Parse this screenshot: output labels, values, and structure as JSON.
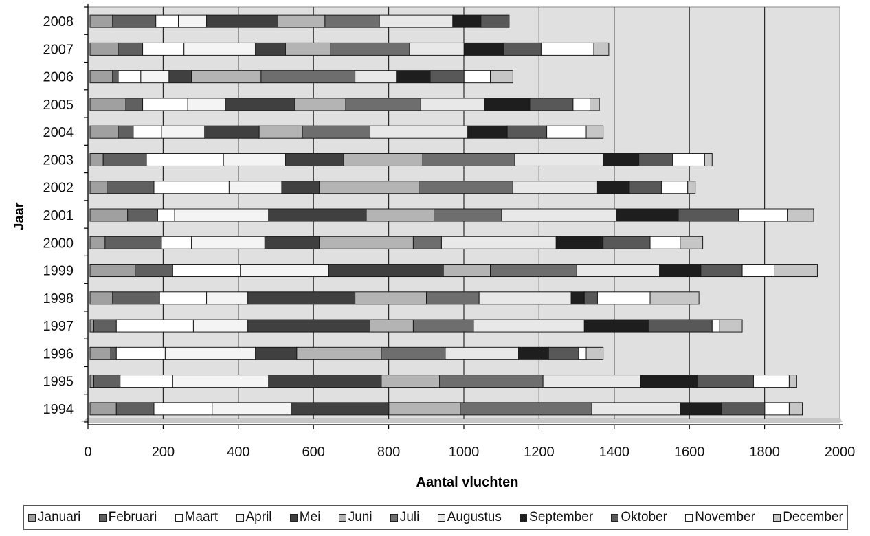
{
  "chart_data": {
    "type": "bar",
    "orientation": "horizontal",
    "stacked": true,
    "title": "",
    "xlabel": "Aantal vluchten",
    "ylabel": "Jaar",
    "xlim": [
      0,
      2000
    ],
    "xticks": [
      "0",
      "200",
      "400",
      "600",
      "800",
      "1000",
      "1200",
      "1400",
      "1600",
      "1800",
      "2000"
    ],
    "grid": true,
    "legend_position": "bottom",
    "categories": [
      "2008",
      "2007",
      "2006",
      "2005",
      "2004",
      "2003",
      "2002",
      "2001",
      "2000",
      "1999",
      "1998",
      "1997",
      "1996",
      "1995",
      "1994"
    ],
    "series": [
      {
        "name": "Januari",
        "color": "#a0a0a0",
        "values": [
          60,
          75,
          60,
          95,
          75,
          35,
          45,
          100,
          40,
          120,
          60,
          10,
          55,
          10,
          70
        ]
      },
      {
        "name": "Februari",
        "color": "#606060",
        "values": [
          115,
          65,
          15,
          45,
          40,
          115,
          125,
          80,
          150,
          100,
          125,
          60,
          15,
          70,
          100
        ]
      },
      {
        "name": "Maart",
        "color": "#ffffff",
        "values": [
          60,
          110,
          60,
          120,
          75,
          205,
          200,
          45,
          80,
          180,
          125,
          205,
          130,
          140,
          155
        ]
      },
      {
        "name": "April",
        "color": "#f4f4f4",
        "values": [
          75,
          190,
          75,
          100,
          115,
          165,
          140,
          250,
          195,
          235,
          110,
          145,
          240,
          255,
          210
        ]
      },
      {
        "name": "Mei",
        "color": "#404040",
        "values": [
          190,
          80,
          60,
          185,
          145,
          155,
          100,
          260,
          145,
          305,
          285,
          325,
          110,
          300,
          260
        ]
      },
      {
        "name": "Juni",
        "color": "#b4b4b4",
        "values": [
          125,
          120,
          185,
          135,
          115,
          210,
          265,
          180,
          250,
          125,
          190,
          115,
          225,
          155,
          190
        ]
      },
      {
        "name": "Juli",
        "color": "#6e6e6e",
        "values": [
          145,
          210,
          250,
          200,
          180,
          245,
          250,
          180,
          75,
          230,
          140,
          160,
          170,
          275,
          350
        ]
      },
      {
        "name": "Augustus",
        "color": "#e8e8e8",
        "values": [
          195,
          145,
          110,
          170,
          260,
          235,
          225,
          305,
          305,
          220,
          245,
          295,
          195,
          260,
          235
        ]
      },
      {
        "name": "September",
        "color": "#1e1e1e",
        "values": [
          75,
          105,
          90,
          120,
          105,
          95,
          85,
          165,
          125,
          110,
          35,
          170,
          80,
          150,
          110
        ]
      },
      {
        "name": "Oktober",
        "color": "#585858",
        "values": [
          75,
          100,
          90,
          115,
          105,
          90,
          85,
          160,
          125,
          110,
          35,
          170,
          80,
          150,
          115
        ]
      },
      {
        "name": "November",
        "color": "#ffffff",
        "values": [
          0,
          140,
          70,
          45,
          105,
          85,
          70,
          130,
          80,
          85,
          140,
          20,
          20,
          95,
          65
        ]
      },
      {
        "name": "December",
        "color": "#c6c6c6",
        "values": [
          0,
          40,
          60,
          25,
          45,
          20,
          20,
          70,
          60,
          115,
          130,
          60,
          45,
          20,
          35
        ]
      }
    ]
  }
}
